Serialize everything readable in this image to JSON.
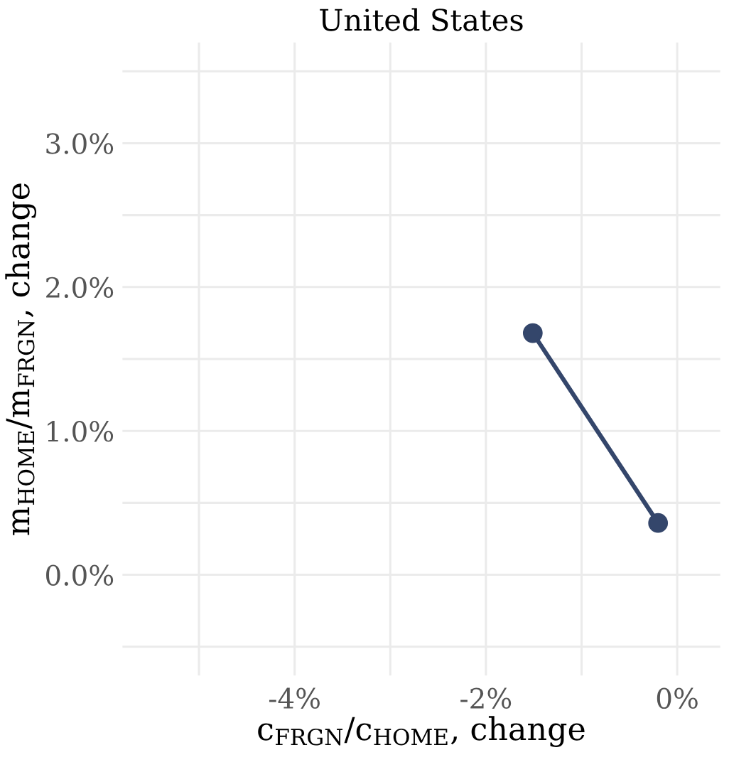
{
  "chart_data": {
    "type": "line",
    "title": "United States",
    "xlabel": "c$_{FRGN}$/c$_{HOME}$, change",
    "ylabel": "m$_{HOME}$/m$_{FRGN}$, change",
    "x": [
      -1.51,
      -0.2
    ],
    "series": [
      {
        "color": "#34466b",
        "values": [
          1.68,
          0.36
        ]
      }
    ],
    "marker": "circle",
    "line_style": "solid",
    "grid": true,
    "xlim": [
      -5.8,
      0.45
    ],
    "ylim": [
      -0.7,
      3.7
    ],
    "xticks": [
      {
        "value": -5,
        "label": null
      },
      {
        "value": -4,
        "label": "-4%"
      },
      {
        "value": -3,
        "label": null
      },
      {
        "value": -2,
        "label": "-2%"
      },
      {
        "value": -1,
        "label": null
      },
      {
        "value": 0,
        "label": "0%"
      }
    ],
    "yticks": [
      {
        "value": -0.5,
        "label": null
      },
      {
        "value": 0,
        "label": "0.0%"
      },
      {
        "value": 0.5,
        "label": null
      },
      {
        "value": 1,
        "label": "1.0%"
      },
      {
        "value": 1.5,
        "label": null
      },
      {
        "value": 2,
        "label": "2.0%"
      },
      {
        "value": 2.5,
        "label": null
      },
      {
        "value": 3,
        "label": "3.0%"
      },
      {
        "value": 3.5,
        "label": null
      }
    ]
  }
}
